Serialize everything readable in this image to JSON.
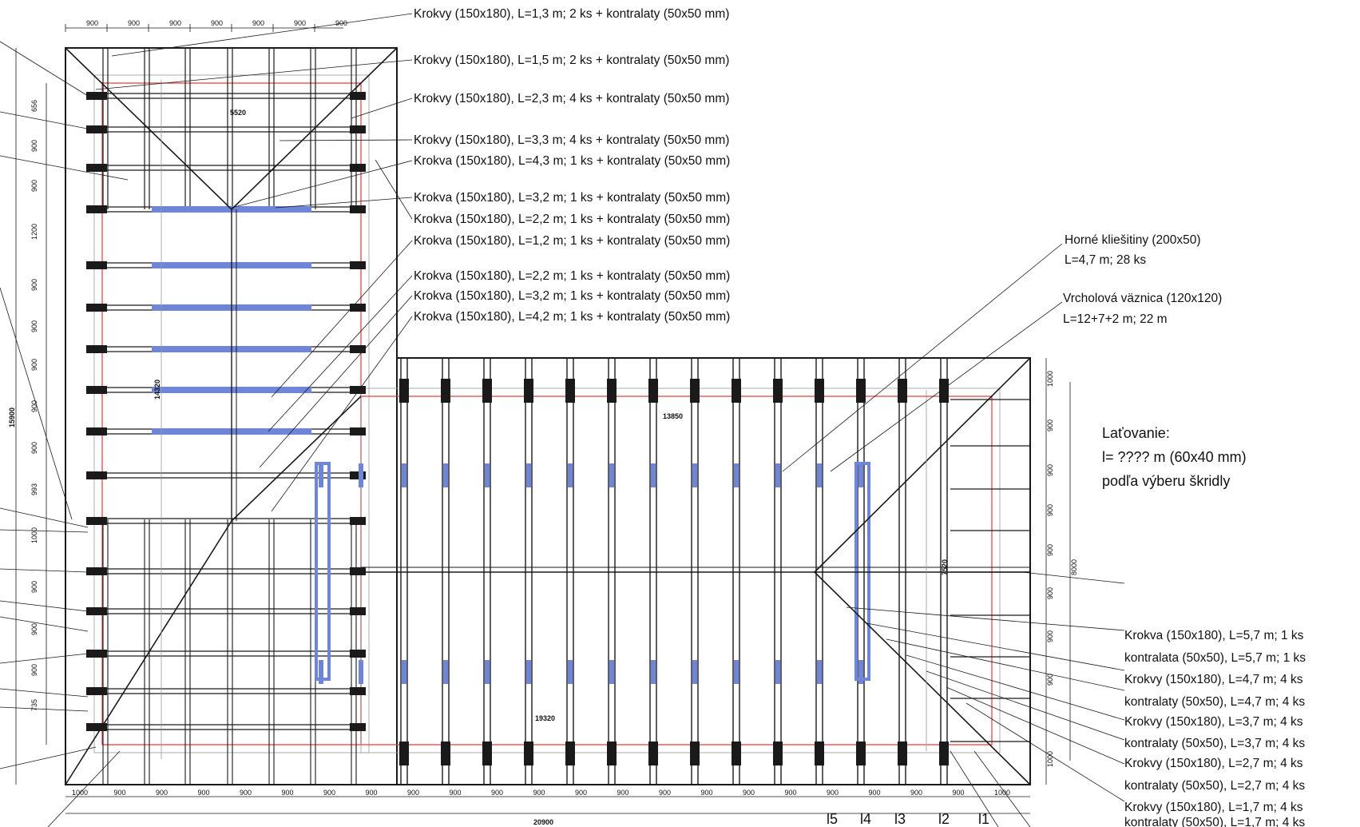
{
  "labels_left": [
    "Krokvy (150x180), L=1,3 m; 2 ks + kontralaty (50x50 mm)",
    "Krokvy (150x180), L=1,5 m; 2 ks + kontralaty (50x50 mm)",
    "Krokvy (150x180), L=2,3 m; 4 ks + kontralaty (50x50 mm)",
    "Krokvy (150x180), L=3,3 m; 4 ks + kontralaty (50x50 mm)",
    "Krokva (150x180), L=4,3 m; 1 ks + kontralaty (50x50 mm)",
    "Krokva (150x180), L=3,2 m; 1 ks + kontralaty (50x50 mm)",
    "Krokva (150x180), L=2,2 m; 1 ks + kontralaty (50x50 mm)",
    "Krokva (150x180), L=1,2 m; 1 ks + kontralaty (50x50 mm)",
    "Krokva (150x180), L=2,2 m; 1 ks + kontralaty (50x50 mm)",
    "Krokva (150x180), L=3,2 m; 1 ks + kontralaty (50x50 mm)",
    "Krokva (150x180), L=4,2 m; 1 ks + kontralaty (50x50 mm)"
  ],
  "horne_kliestiny": {
    "line1": "Horné kliešitiny (200x50)",
    "line2": "L=4,7 m; 28 ks"
  },
  "vrcholova": {
    "line1": "Vrcholová väznica (120x120)",
    "line2": "L=12+7+2 m; 22 m"
  },
  "latovanie": {
    "line1": "Laťovanie:",
    "line2": "l= ???? m  (60x40 mm)",
    "line3": "podľa výberu škridly"
  },
  "labels_right": [
    "Krokva (150x180), L=5,7 m; 1 ks",
    "kontralata (50x50), L=5,7 m; 1 ks",
    "Krokvy (150x180), L=4,7 m; 4 ks",
    "kontralaty (50x50), L=4,7 m; 4 ks",
    "Krokvy (150x180), L=3,7 m; 4 ks",
    "kontralaty (50x50), L=3,7 m; 4 ks",
    "Krokvy (150x180), L=2,7 m; 4 ks",
    "kontralaty (50x50), L=2,7 m; 4 ks",
    "Krokvy (150x180), L=1,7 m; 4 ks",
    "kontralaty (50x50), L=1,7 m; 4 ks"
  ],
  "dims": {
    "top": [
      "900",
      "900",
      "900",
      "900",
      "900",
      "900",
      "900"
    ],
    "bottom": [
      "1000",
      "900",
      "900",
      "900",
      "900",
      "900",
      "900",
      "900",
      "900",
      "900",
      "900",
      "900",
      "900",
      "900",
      "900",
      "900",
      "900",
      "900",
      "900",
      "900",
      "900",
      "900",
      "1000"
    ],
    "left": [
      "656",
      "900",
      "900",
      "1200",
      "900",
      "900",
      "900",
      "900",
      "900",
      "993",
      "1000",
      "900",
      "900",
      "900",
      "735"
    ],
    "right": [
      "1000",
      "900",
      "900",
      "900",
      "900",
      "900",
      "900",
      "900",
      "1000"
    ],
    "total_width": "20900",
    "left_total": "15900",
    "inner_left": "14320",
    "inner_top": "5520",
    "inner_mid": "13850",
    "inner_bottom": "19320",
    "inner_right": "7520",
    "right_total": "8000"
  },
  "markers": [
    "l5",
    "l4",
    "l3",
    "l2",
    "l1"
  ]
}
